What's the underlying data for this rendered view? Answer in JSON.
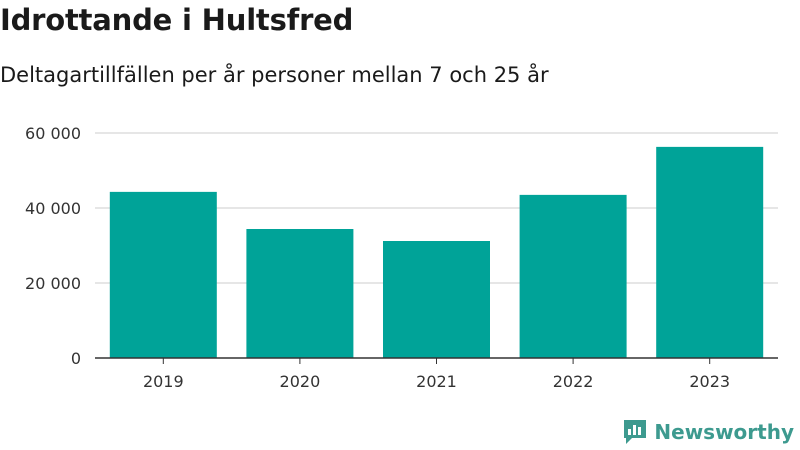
{
  "header": {
    "title": "Idrottande i Hultsfred",
    "subtitle": "Deltagartillfällen per år personer mellan 7 och 25 år"
  },
  "brand": {
    "name": "Newsworthy",
    "icon": "newsworthy-logo-icon",
    "color": "#3d9a8f"
  },
  "chart_data": {
    "type": "bar",
    "title": "Idrottande i Hultsfred",
    "subtitle": "Deltagartillfällen per år personer mellan 7 och 25 år",
    "categories": [
      "2019",
      "2020",
      "2021",
      "2022",
      "2023"
    ],
    "values": [
      44300,
      34400,
      31200,
      43500,
      56300
    ],
    "ylim": [
      0,
      60000
    ],
    "yticks": [
      0,
      20000,
      40000,
      60000
    ],
    "ytick_labels": [
      "0",
      "20 000",
      "40 000",
      "60 000"
    ],
    "xlabel": "",
    "ylabel": "",
    "grid": true,
    "legend": "none",
    "bar_color": "#00a398",
    "grid_color": "#dddddd",
    "axis_color": "#333333"
  }
}
